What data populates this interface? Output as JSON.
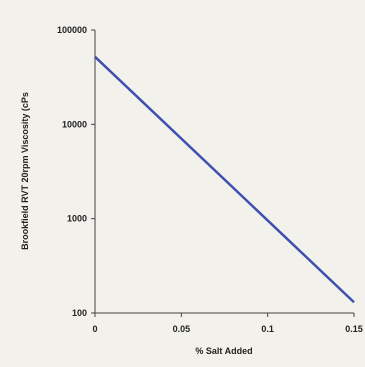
{
  "chart_data": {
    "type": "line",
    "xlabel": "% Salt Added",
    "ylabel": "Brookfield RVT 20rpm Viscosity (cPs",
    "xlim": [
      0,
      0.15
    ],
    "ylim": [
      100,
      100000
    ],
    "y_scale": "log",
    "x_ticks": [
      "0",
      "0.05",
      "0.1",
      "0.15"
    ],
    "y_ticks": [
      "100000",
      "10000",
      "1000",
      "100"
    ],
    "grid": false,
    "line_color": "#3f4fb0",
    "series": [
      {
        "x": [
          0,
          0.15
        ],
        "y": [
          52000,
          130
        ]
      }
    ]
  }
}
